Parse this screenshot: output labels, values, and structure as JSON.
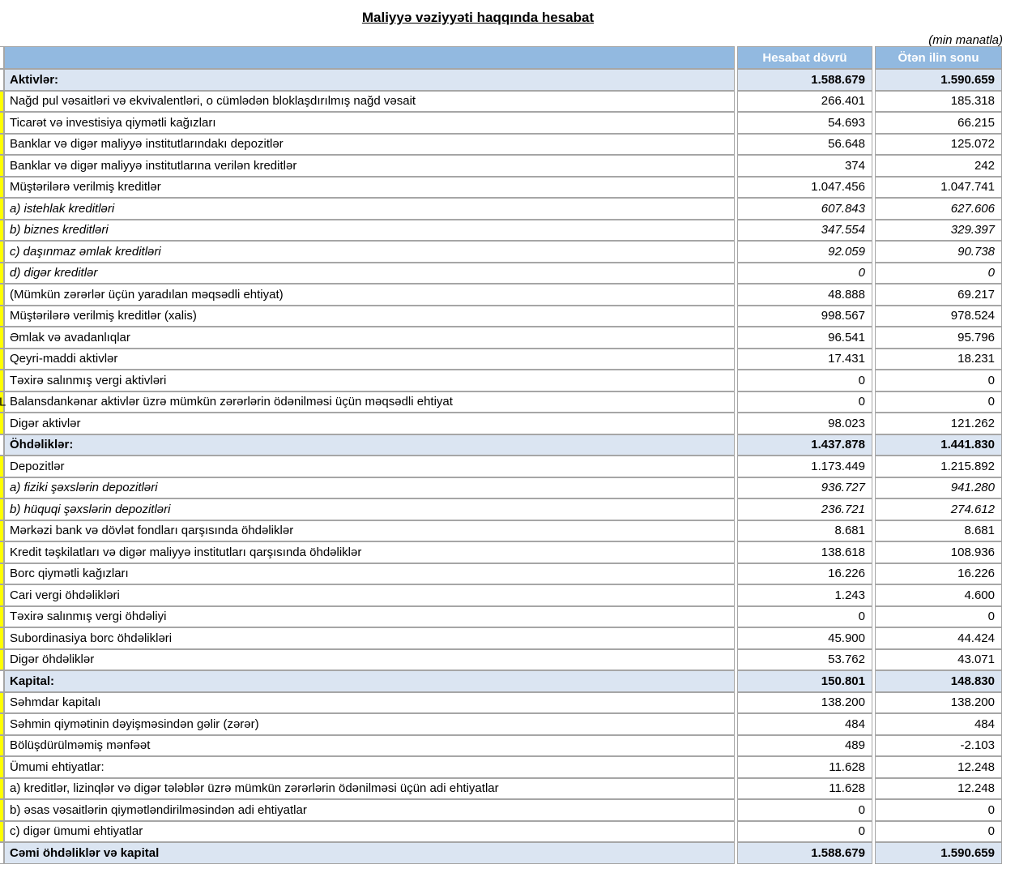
{
  "title": "Maliyyə vəziyyəti haqqında hesabat",
  "units_note": "(min manatla)",
  "colors": {
    "header_bg": "#92B9E0",
    "header_text": "#FFFFFF",
    "section_bg": "#DBE5F2",
    "grid_line": "#A6A6A6",
    "left_column_yellow": "#FFFF00"
  },
  "table": {
    "columns": {
      "label_header": "",
      "current": "Hesabat dövrü",
      "previous": "Ötən ilin sonu"
    },
    "rows": [
      {
        "label": "Aktivlər:",
        "current": "1.588.679",
        "previous": "1.590.659",
        "style": "section"
      },
      {
        "label": "Nağd pul vəsaitləri və  ekvivalentləri, o cümlədən bloklaşdırılmış nağd vəsait",
        "current": "266.401",
        "previous": "185.318",
        "style": "normal"
      },
      {
        "label": "Ticarət və investisiya qiymətli kağızları",
        "current": "54.693",
        "previous": "66.215",
        "style": "normal"
      },
      {
        "label": "Banklar və digər maliyyə institutlarındakı depozitlər",
        "current": "56.648",
        "previous": "125.072",
        "style": "normal"
      },
      {
        "label": "Banklar və digər maliyyə institutlarına verilən kreditlər",
        "current": "374",
        "previous": "242",
        "style": "normal"
      },
      {
        "label": "Müştərilərə verilmiş kreditlər",
        "current": "1.047.456",
        "previous": "1.047.741",
        "style": "normal"
      },
      {
        "label": "a) istehlak kreditləri",
        "current": "607.843",
        "previous": "627.606",
        "style": "italic"
      },
      {
        "label": "b) biznes kreditləri",
        "current": "347.554",
        "previous": "329.397",
        "style": "italic"
      },
      {
        "label": "c) daşınmaz əmlak kreditləri",
        "current": "92.059",
        "previous": "90.738",
        "style": "italic"
      },
      {
        "label": "d) digər kreditlər",
        "current": "0",
        "previous": "0",
        "style": "italic"
      },
      {
        "label": "(Mümkün zərərlər üçün yaradılan məqsədli ehtiyat)",
        "current": "48.888",
        "previous": "69.217",
        "style": "normal"
      },
      {
        "label": "Müştərilərə verilmiş kreditlər (xalis)",
        "current": "998.567",
        "previous": "978.524",
        "style": "normal"
      },
      {
        "label": "Əmlak və avadanlıqlar",
        "current": "96.541",
        "previous": "95.796",
        "style": "normal"
      },
      {
        "label": "Qeyri-maddi aktivlər",
        "current": "17.431",
        "previous": "18.231",
        "style": "normal"
      },
      {
        "label": "Təxirə salınmış vergi aktivləri",
        "current": "0",
        "previous": "0",
        "style": "normal"
      },
      {
        "label": "Balansdankənar aktivlər üzrə mümkün zərərlərin ödənilməsi üçün məqsədli ehtiyat",
        "current": "0",
        "previous": "0",
        "style": "normal",
        "left_overflow": "L"
      },
      {
        "label": "Digər aktivlər",
        "current": "98.023",
        "previous": "121.262",
        "style": "normal"
      },
      {
        "label": "Öhdəliklər:",
        "current": "1.437.878",
        "previous": "1.441.830",
        "style": "section"
      },
      {
        "label": "Depozitlər",
        "current": "1.173.449",
        "previous": "1.215.892",
        "style": "normal"
      },
      {
        "label": "a) fiziki şəxslərin depozitləri",
        "current": "936.727",
        "previous": "941.280",
        "style": "italic"
      },
      {
        "label": "b) hüquqi şəxslərin depozitləri",
        "current": "236.721",
        "previous": "274.612",
        "style": "italic"
      },
      {
        "label": "Mərkəzi bank və dövlət fondları qarşısında öhdəliklər",
        "current": "8.681",
        "previous": "8.681",
        "style": "normal"
      },
      {
        "label": "Kredit təşkilatları və digər maliyyə institutları qarşısında öhdəliklər",
        "current": "138.618",
        "previous": "108.936",
        "style": "normal"
      },
      {
        "label": "Borc qiymətli kağızları",
        "current": "16.226",
        "previous": "16.226",
        "style": "normal"
      },
      {
        "label": "Cari vergi öhdəlikləri",
        "current": "1.243",
        "previous": "4.600",
        "style": "normal"
      },
      {
        "label": "Təxirə salınmış vergi öhdəliyi",
        "current": "0",
        "previous": "0",
        "style": "normal"
      },
      {
        "label": "Subordinasiya borc öhdəlikləri",
        "current": "45.900",
        "previous": "44.424",
        "style": "normal"
      },
      {
        "label": "Digər öhdəliklər",
        "current": "53.762",
        "previous": "43.071",
        "style": "normal"
      },
      {
        "label": "Kapital:",
        "current": "150.801",
        "previous": "148.830",
        "style": "section"
      },
      {
        "label": "Səhmdar kapitalı",
        "current": "138.200",
        "previous": "138.200",
        "style": "normal"
      },
      {
        "label": "Səhmin qiymətinin dəyişməsindən gəlir (zərər)",
        "current": "484",
        "previous": "484",
        "style": "normal"
      },
      {
        "label": "Bölüşdürülməmiş mənfəət",
        "current": "489",
        "previous": "-2.103",
        "style": "normal"
      },
      {
        "label": "Ümumi ehtiyatlar:",
        "current": "11.628",
        "previous": "12.248",
        "style": "normal"
      },
      {
        "label": "a) kreditlər, lizinqlər və digər tələblər üzrə mümkün zərərlərin ödənilməsi üçün adi ehtiyatlar",
        "current": "11.628",
        "previous": "12.248",
        "style": "normal"
      },
      {
        "label": "b) əsas vəsaitlərin qiymətləndirilməsindən adi ehtiyatlar",
        "current": "0",
        "previous": "0",
        "style": "normal"
      },
      {
        "label": "c) digər ümumi ehtiyatlar",
        "current": "0",
        "previous": "0",
        "style": "normal"
      },
      {
        "label": "Cəmi öhdəliklər və kapital",
        "current": "1.588.679",
        "previous": "1.590.659",
        "style": "total"
      }
    ]
  }
}
